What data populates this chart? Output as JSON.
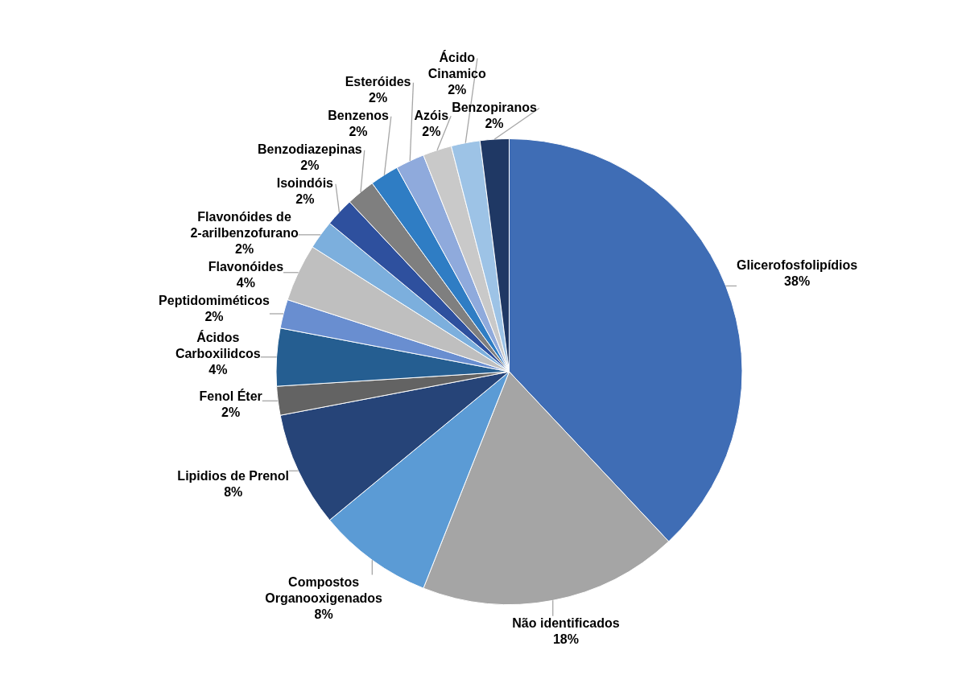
{
  "chart_data": {
    "type": "pie",
    "categories": [
      "Glicerofosfolipídios",
      "Não identificados",
      "Compostos Organooxigenados",
      "Lipidios de Prenol",
      "Fenol Éter",
      "Ácidos Carboxilidcos",
      "Peptidomiméticos",
      "Flavonóides",
      "Flavonóides de 2-arilbenzofurano",
      "Isoindóis",
      "Benzodiazepinas",
      "Benzenos",
      "Esteróides",
      "Azóis",
      "Ácido Cinamico",
      "Benzopiranos"
    ],
    "values": [
      38,
      18,
      8,
      8,
      2,
      4,
      2,
      4,
      2,
      2,
      2,
      2,
      2,
      2,
      2,
      2
    ],
    "value_labels": [
      "38%",
      "18%",
      "8%",
      "8%",
      "2%",
      "4%",
      "2%",
      "4%",
      "2%",
      "2%",
      "2%",
      "2%",
      "2%",
      "2%",
      "2%",
      "2%"
    ],
    "colors": [
      "#3f6db5",
      "#a5a5a5",
      "#5b9bd5",
      "#264478",
      "#636363",
      "#255e91",
      "#698ed0",
      "#bfbfbf",
      "#7cafdd",
      "#2e509e",
      "#7f7f7f",
      "#2f7dc4",
      "#8faadc",
      "#c9c9c9",
      "#9dc3e6",
      "#1f3864"
    ],
    "legend": false
  }
}
